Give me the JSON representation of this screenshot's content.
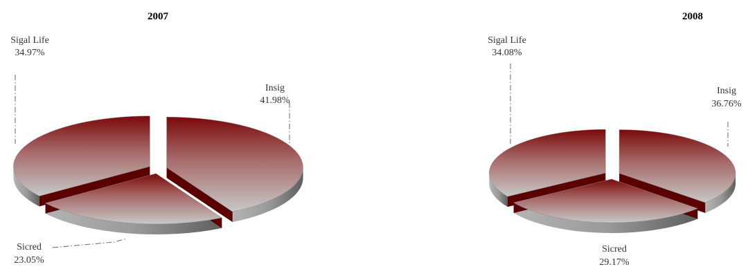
{
  "chart_data": [
    {
      "type": "pie",
      "title": "2007",
      "categories": [
        "Insig",
        "Sicred",
        "Sigal Life"
      ],
      "values": [
        41.98,
        23.05,
        34.97
      ],
      "value_labels": [
        "41.98%",
        "23.05%",
        "34.97%"
      ],
      "style": "3d-exploded",
      "colors": {
        "top": "#7a0a0a",
        "bottom": "#c8c8c8",
        "separator": "#5a0000"
      }
    },
    {
      "type": "pie",
      "title": "2008",
      "categories": [
        "Insig",
        "Sicred",
        "Sigal Life"
      ],
      "values": [
        36.76,
        29.17,
        34.08
      ],
      "value_labels": [
        "36.76%",
        "29.17%",
        "34.08%"
      ],
      "style": "3d-exploded",
      "colors": {
        "top": "#7a0a0a",
        "bottom": "#c8c8c8",
        "separator": "#5a0000"
      }
    }
  ]
}
